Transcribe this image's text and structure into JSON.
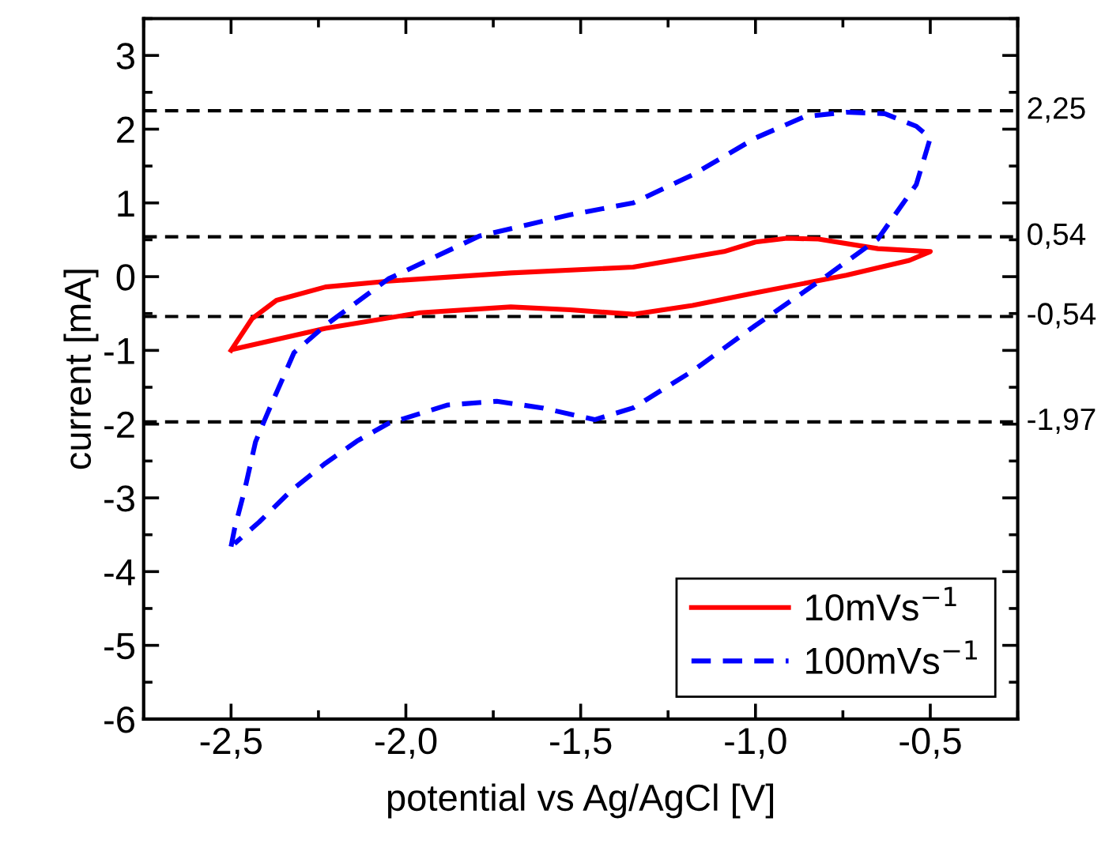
{
  "chart_data": {
    "type": "line",
    "xlabel": "potential vs Ag/AgCl [V]",
    "ylabel": "current [mA]",
    "xlim": [
      -2.75,
      -0.25
    ],
    "ylim": [
      -6,
      3.5
    ],
    "xticks": [
      {
        "value": -2.5,
        "label": "-2,5"
      },
      {
        "value": -2.0,
        "label": "-2,0"
      },
      {
        "value": -1.5,
        "label": "-1,5"
      },
      {
        "value": -1.0,
        "label": "-1,0"
      },
      {
        "value": -0.5,
        "label": "-0,5"
      }
    ],
    "yticks": [
      -6,
      -5,
      -4,
      -3,
      -2,
      -1,
      0,
      1,
      2,
      3
    ],
    "grid": false,
    "legend": "bottom right",
    "marker": "none",
    "series": [
      {
        "name": "10mVs$^{−1}$",
        "color": "#ff0000",
        "line_style": "solid",
        "x": [
          -2.5,
          -2.44,
          -2.37,
          -2.23,
          -2.05,
          -1.7,
          -1.35,
          -1.09,
          -1.0,
          -0.91,
          -0.82,
          -0.65,
          -0.5,
          -0.56,
          -0.74,
          -1.0,
          -1.18,
          -1.35,
          -1.53,
          -1.7,
          -1.96,
          -2.23,
          -2.49
        ],
        "values": [
          -1.0,
          -0.57,
          -0.32,
          -0.14,
          -0.06,
          0.05,
          0.13,
          0.34,
          0.47,
          0.52,
          0.51,
          0.38,
          0.34,
          0.22,
          0.02,
          -0.22,
          -0.39,
          -0.51,
          -0.45,
          -0.41,
          -0.49,
          -0.7,
          -0.98
        ]
      },
      {
        "name": "100mVs$^{−1}$",
        "color": "#0000ff",
        "line_style": "dashed",
        "x": [
          -2.5,
          -2.49,
          -2.46,
          -2.43,
          -2.4,
          -2.32,
          -2.23,
          -2.05,
          -1.79,
          -1.53,
          -1.35,
          -1.18,
          -1.0,
          -0.86,
          -0.74,
          -0.63,
          -0.54,
          -0.5,
          -0.54,
          -0.65,
          -0.82,
          -1.0,
          -1.18,
          -1.35,
          -1.46,
          -1.61,
          -1.74,
          -1.88,
          -2.05,
          -2.14,
          -2.23,
          -2.33,
          -2.42,
          -2.49
        ],
        "values": [
          -3.66,
          -3.42,
          -2.87,
          -2.24,
          -1.9,
          -1.03,
          -0.66,
          -0.03,
          0.55,
          0.84,
          1.0,
          1.38,
          1.88,
          2.17,
          2.23,
          2.21,
          2.04,
          1.88,
          1.25,
          0.51,
          -0.07,
          -0.66,
          -1.28,
          -1.78,
          -1.94,
          -1.78,
          -1.69,
          -1.74,
          -1.99,
          -2.23,
          -2.53,
          -2.91,
          -3.33,
          -3.62
        ]
      }
    ],
    "ref_lines": [
      {
        "axis": "y",
        "value": 2.25,
        "label": "2,25",
        "color": "#000000",
        "line_style": "dashed"
      },
      {
        "axis": "y",
        "value": 0.54,
        "label": "0,54",
        "color": "#000000",
        "line_style": "dashed"
      },
      {
        "axis": "y",
        "value": -0.54,
        "label": "-0,54",
        "color": "#000000",
        "line_style": "dashed"
      },
      {
        "axis": "y",
        "value": -1.97,
        "label": "-1,97",
        "color": "#000000",
        "line_style": "dashed"
      }
    ]
  }
}
